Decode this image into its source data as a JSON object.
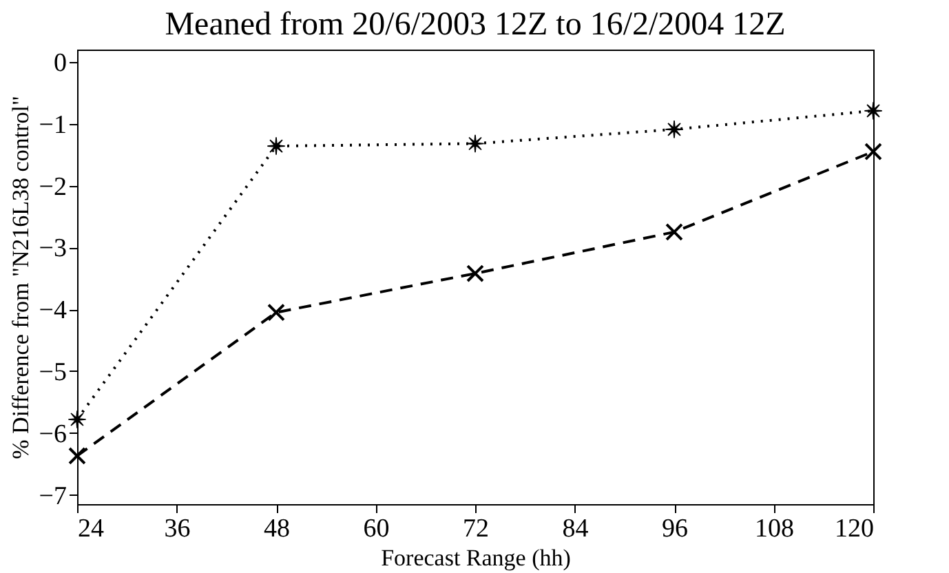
{
  "chart_data": {
    "type": "line",
    "title": "Meaned from 20/6/2003 12Z to 16/2/2004 12Z",
    "xlabel": "Forecast Range (hh)",
    "ylabel": "% Difference from \"N216L38 control\"",
    "x": [
      24,
      48,
      72,
      96,
      120
    ],
    "series": [
      {
        "color": "#000000",
        "line_style": "dotted",
        "marker": "star",
        "values": [
          -5.78,
          -1.36,
          -1.32,
          -1.09,
          -0.79
        ]
      },
      {
        "color": "#000000",
        "line_style": "dashed",
        "marker": "cross",
        "values": [
          -6.37,
          -4.05,
          -3.42,
          -2.75,
          -1.45
        ]
      }
    ],
    "xlim": [
      24,
      120
    ],
    "xticks": [
      24,
      36,
      48,
      60,
      72,
      84,
      96,
      108,
      120
    ],
    "ylim": [
      -7.15,
      0.2
    ],
    "yticks": [
      0,
      -1,
      -2,
      -3,
      -4,
      -5,
      -6,
      -7
    ],
    "grid": false
  }
}
